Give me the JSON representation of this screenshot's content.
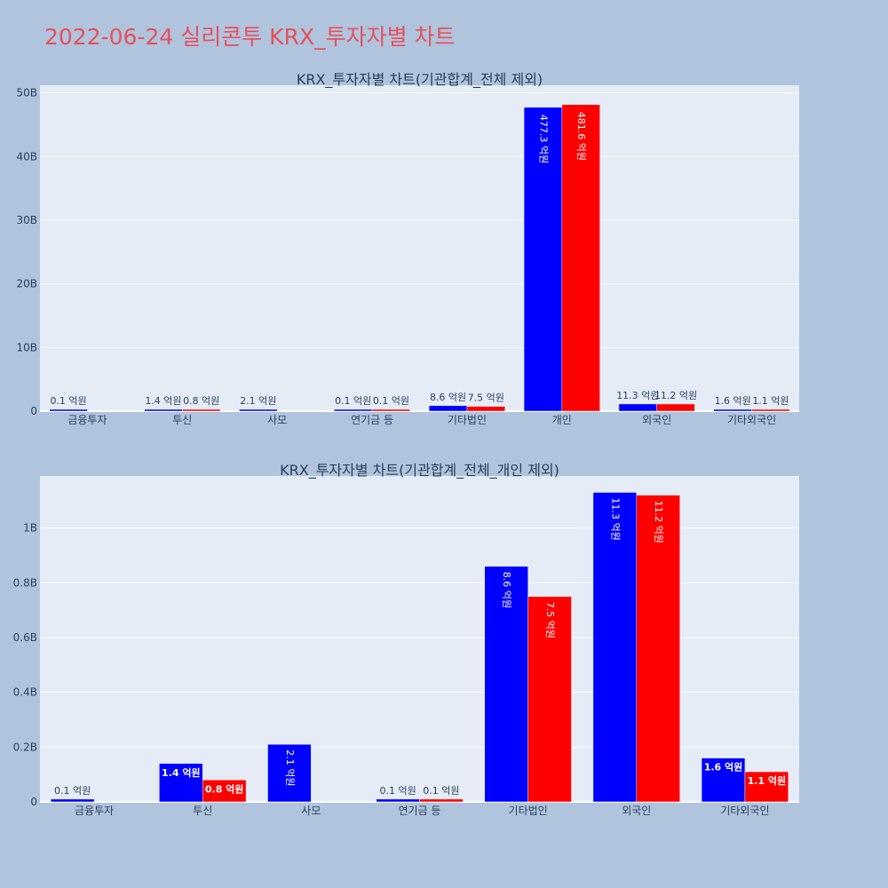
{
  "page_title": "2022-06-24 실리콘투 KRX_투자자별 차트",
  "colors": {
    "series_buy": "#0000ff",
    "series_sell": "#ff0000",
    "plot_bg": "#e5ecf6",
    "page_bg": "#b0c4de",
    "title": "#e8505b",
    "text": "#2a3f5f"
  },
  "chart_data": [
    {
      "type": "bar",
      "title": "KRX_투자자별 차트(기관합계_전체 제외)",
      "categories": [
        "금융투자",
        "투신",
        "사모",
        "연기금 등",
        "기타법인",
        "개인",
        "외국인",
        "기타외국인"
      ],
      "y_ticks": [
        {
          "value": 0,
          "label": "0"
        },
        {
          "value": 10,
          "label": "10B"
        },
        {
          "value": 20,
          "label": "20B"
        },
        {
          "value": 30,
          "label": "30B"
        },
        {
          "value": 40,
          "label": "40B"
        },
        {
          "value": 50,
          "label": "50B"
        }
      ],
      "ylim": [
        0,
        51.2
      ],
      "grid": true,
      "series": [
        {
          "values": [
            0.01,
            0.14,
            0.21,
            0.01,
            0.86,
            47.73,
            1.13,
            0.16
          ],
          "labels": [
            "0.1 억원",
            "1.4 억원",
            "2.1 억원",
            "0.1 억원",
            "8.6 억원",
            "477.3 억원",
            "11.3 억원",
            "1.6 억원"
          ]
        },
        {
          "values": [
            null,
            0.08,
            null,
            0.01,
            0.75,
            48.16,
            1.12,
            0.11
          ],
          "labels": [
            "",
            "0.8 억원",
            "",
            "0.1 억원",
            "7.5 억원",
            "481.6 억원",
            "11.2 억원",
            "1.1 억원"
          ]
        }
      ]
    },
    {
      "type": "bar",
      "title": "KRX_투자자별 차트(기관합계_전체_개인 제외)",
      "categories": [
        "금융투자",
        "투신",
        "사모",
        "연기금 등",
        "기타법인",
        "외국인",
        "기타외국인"
      ],
      "y_ticks": [
        {
          "value": 0,
          "label": "0"
        },
        {
          "value": 0.2,
          "label": "0.2B"
        },
        {
          "value": 0.4,
          "label": "0.4B"
        },
        {
          "value": 0.6,
          "label": "0.6B"
        },
        {
          "value": 0.8,
          "label": "0.8B"
        },
        {
          "value": 1.0,
          "label": "1B"
        }
      ],
      "ylim": [
        0,
        1.19
      ],
      "grid": true,
      "series": [
        {
          "values": [
            0.01,
            0.14,
            0.21,
            0.01,
            0.86,
            1.13,
            0.16
          ],
          "labels": [
            "0.1 억원",
            "1.4 억원",
            "2.1 억원",
            "0.1 억원",
            "8.6 억원",
            "11.3 억원",
            "1.6 억원"
          ]
        },
        {
          "values": [
            null,
            0.08,
            null,
            0.01,
            0.75,
            1.12,
            0.11
          ],
          "labels": [
            "",
            "0.8 억원",
            "",
            "0.1 억원",
            "7.5 억원",
            "11.2 억원",
            "1.1 억원"
          ]
        }
      ]
    }
  ]
}
